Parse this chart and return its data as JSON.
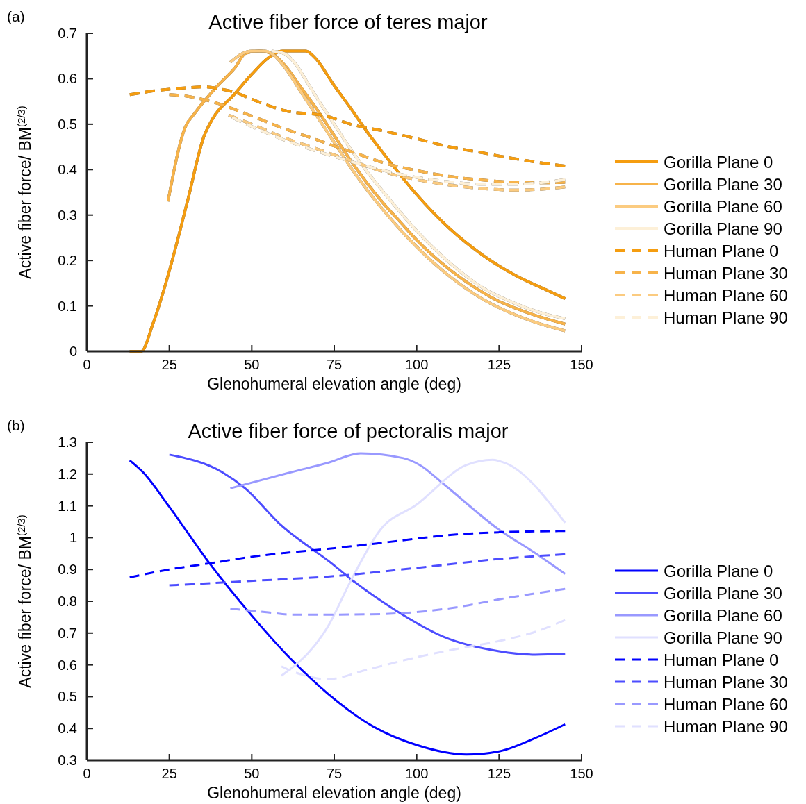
{
  "chart_data": [
    {
      "type": "line",
      "title": "Active fiber force of teres major",
      "xlabel": "Glenohumeral elevation angle (deg)",
      "ylabel": "Active fiber force/ BM$^{(2/3)}$",
      "annotations": [
        "(a)"
      ],
      "xlim": [
        0,
        150
      ],
      "xticks": [
        0,
        25,
        50,
        75,
        100,
        125,
        150
      ],
      "ylim": [
        0,
        0.7
      ],
      "yticks": [
        0,
        0.1,
        0.2,
        0.3,
        0.4,
        0.5,
        0.6,
        0.7
      ],
      "legend": "right",
      "grid": false,
      "series": [
        {
          "name": "Gorilla Plane 0",
          "color": "#f59d10",
          "line_style": "solid",
          "x": [
            13,
            16.5,
            20,
            25,
            30.5,
            35.5,
            38.3,
            44.6,
            50,
            55,
            59.3,
            66.4,
            69.2,
            75,
            80,
            85,
            90,
            100,
            110,
            120,
            130,
            140,
            145
          ],
          "values": [
            0,
            0,
            0.06,
            0.177,
            0.33,
            0.473,
            0.514,
            0.565,
            0.61,
            0.646,
            0.661,
            0.661,
            0.646,
            0.585,
            0.535,
            0.483,
            0.435,
            0.345,
            0.27,
            0.212,
            0.167,
            0.133,
            0.116
          ]
        },
        {
          "name": "Gorilla Plane 30",
          "color": "#f7b34a",
          "line_style": "solid",
          "x": [
            24.6,
            29.8,
            32.7,
            39.7,
            45,
            48.1,
            52.3,
            56,
            60,
            65,
            70,
            75,
            80,
            85,
            90,
            95,
            100,
            110,
            120,
            125,
            130,
            140,
            145
          ],
          "values": [
            0.33,
            0.493,
            0.524,
            0.585,
            0.625,
            0.656,
            0.661,
            0.655,
            0.63,
            0.58,
            0.53,
            0.475,
            0.42,
            0.37,
            0.325,
            0.285,
            0.245,
            0.18,
            0.13,
            0.11,
            0.095,
            0.07,
            0.06
          ]
        },
        {
          "name": "Gorilla Plane 60",
          "color": "#fbcb80",
          "line_style": "solid",
          "x": [
            43.5,
            47,
            50,
            54,
            57,
            60,
            65,
            70,
            75,
            80,
            85,
            90,
            100,
            110,
            120,
            130,
            140,
            145
          ],
          "values": [
            0.636,
            0.655,
            0.661,
            0.661,
            0.65,
            0.625,
            0.57,
            0.515,
            0.46,
            0.405,
            0.355,
            0.31,
            0.23,
            0.165,
            0.115,
            0.08,
            0.055,
            0.045
          ]
        },
        {
          "name": "Gorilla Plane 90",
          "color": "#fdf0d8",
          "line_style": "solid",
          "x": [
            56,
            60,
            63,
            67,
            70,
            75,
            80,
            85,
            90,
            100,
            110,
            120,
            130,
            140,
            145
          ],
          "values": [
            0.661,
            0.655,
            0.635,
            0.59,
            0.555,
            0.5,
            0.445,
            0.395,
            0.35,
            0.265,
            0.195,
            0.14,
            0.105,
            0.08,
            0.072
          ]
        },
        {
          "name": "Human Plane 0",
          "color": "#f59d10",
          "line_style": "dashed",
          "x": [
            13,
            20,
            25,
            30,
            36,
            40,
            45,
            50,
            60,
            73,
            80,
            90,
            100,
            110,
            120,
            125,
            135,
            145
          ],
          "values": [
            0.565,
            0.573,
            0.577,
            0.58,
            0.582,
            0.578,
            0.57,
            0.555,
            0.53,
            0.517,
            0.5,
            0.485,
            0.468,
            0.45,
            0.437,
            0.43,
            0.418,
            0.408
          ]
        },
        {
          "name": "Human Plane 30",
          "color": "#f7b34a",
          "line_style": "dashed",
          "x": [
            25,
            30,
            35,
            40,
            45,
            50,
            60,
            70,
            75,
            80,
            90,
            100,
            110,
            120,
            130,
            140,
            145
          ],
          "values": [
            0.565,
            0.562,
            0.555,
            0.545,
            0.532,
            0.518,
            0.49,
            0.465,
            0.452,
            0.44,
            0.415,
            0.398,
            0.385,
            0.377,
            0.372,
            0.371,
            0.372
          ]
        },
        {
          "name": "Human Plane 60",
          "color": "#fbcb80",
          "line_style": "dashed",
          "x": [
            43,
            50,
            60,
            70,
            80,
            90,
            100,
            110,
            120,
            130,
            140,
            145
          ],
          "values": [
            0.52,
            0.5,
            0.47,
            0.445,
            0.42,
            0.395,
            0.378,
            0.366,
            0.358,
            0.355,
            0.358,
            0.362
          ]
        },
        {
          "name": "Human Plane 90",
          "color": "#fdf0d8",
          "line_style": "dashed",
          "x": [
            44,
            50,
            60,
            70,
            80,
            90,
            100,
            110,
            120,
            130,
            140,
            145
          ],
          "values": [
            0.515,
            0.495,
            0.465,
            0.44,
            0.418,
            0.398,
            0.383,
            0.373,
            0.368,
            0.368,
            0.373,
            0.378
          ]
        }
      ]
    },
    {
      "type": "line",
      "title": "Active fiber force of pectoralis major",
      "xlabel": "Glenohumeral elevation angle (deg)",
      "ylabel": "Active fiber force/ BM$^{(2/3)}$",
      "annotations": [
        "(b)"
      ],
      "xlim": [
        0,
        150
      ],
      "xticks": [
        0,
        25,
        50,
        75,
        100,
        125,
        150
      ],
      "ylim": [
        0.3,
        1.3
      ],
      "yticks": [
        0.3,
        0.4,
        0.5,
        0.6,
        0.7,
        0.8,
        0.9,
        1,
        1.1,
        1.2,
        1.3
      ],
      "legend": "right",
      "grid": false,
      "series": [
        {
          "name": "Gorilla Plane 0",
          "color": "#0000ff",
          "line_style": "solid",
          "x": [
            13,
            17,
            25,
            37,
            50,
            62,
            73,
            87,
            100,
            115,
            125,
            136,
            145
          ],
          "values": [
            1.243,
            1.206,
            1.097,
            0.922,
            0.755,
            0.617,
            0.51,
            0.405,
            0.348,
            0.318,
            0.328,
            0.37,
            0.413
          ]
        },
        {
          "name": "Gorilla Plane 30",
          "color": "#4d4dff",
          "line_style": "solid",
          "x": [
            25,
            41,
            48,
            59,
            69,
            73,
            80,
            94,
            108,
            125,
            136,
            145
          ],
          "values": [
            1.261,
            1.206,
            1.155,
            1.038,
            0.959,
            0.929,
            0.87,
            0.769,
            0.689,
            0.643,
            0.632,
            0.635
          ]
        },
        {
          "name": "Gorilla Plane 60",
          "color": "#9999ff",
          "line_style": "solid",
          "x": [
            43.5,
            62,
            73,
            83,
            96,
            101,
            108,
            125,
            136,
            145
          ],
          "values": [
            1.155,
            1.206,
            1.235,
            1.265,
            1.25,
            1.228,
            1.17,
            1.025,
            0.951,
            0.886
          ]
        },
        {
          "name": "Gorilla Plane 90",
          "color": "#e0e0ff",
          "line_style": "solid",
          "x": [
            59,
            69,
            73,
            80,
            89,
            100,
            115,
            123,
            127,
            145
          ],
          "values": [
            0.566,
            0.66,
            0.719,
            0.864,
            1.025,
            1.104,
            1.228,
            1.245,
            1.234,
            1.047
          ]
        },
        {
          "name": "Human Plane 0",
          "color": "#0000ff",
          "line_style": "dashed",
          "x": [
            13,
            25,
            37,
            50,
            60,
            73,
            88,
            100,
            112,
            125,
            145
          ],
          "values": [
            0.875,
            0.9,
            0.919,
            0.94,
            0.952,
            0.965,
            0.982,
            0.997,
            1.01,
            1.017,
            1.021
          ]
        },
        {
          "name": "Human Plane 30",
          "color": "#4d4dff",
          "line_style": "dashed",
          "x": [
            25,
            48,
            75,
            100,
            125,
            145
          ],
          "values": [
            0.85,
            0.863,
            0.879,
            0.905,
            0.933,
            0.948
          ]
        },
        {
          "name": "Human Plane 60",
          "color": "#9999ff",
          "line_style": "dashed",
          "x": [
            43.5,
            55,
            62,
            73,
            85,
            100,
            112,
            125,
            145
          ],
          "values": [
            0.777,
            0.765,
            0.758,
            0.758,
            0.759,
            0.766,
            0.781,
            0.806,
            0.839
          ]
        },
        {
          "name": "Human Plane 90",
          "color": "#e0e0ff",
          "line_style": "dashed",
          "x": [
            59,
            65,
            73,
            85,
            100,
            112,
            125,
            136,
            145
          ],
          "values": [
            0.595,
            0.57,
            0.555,
            0.585,
            0.624,
            0.65,
            0.675,
            0.704,
            0.741
          ]
        }
      ]
    }
  ]
}
